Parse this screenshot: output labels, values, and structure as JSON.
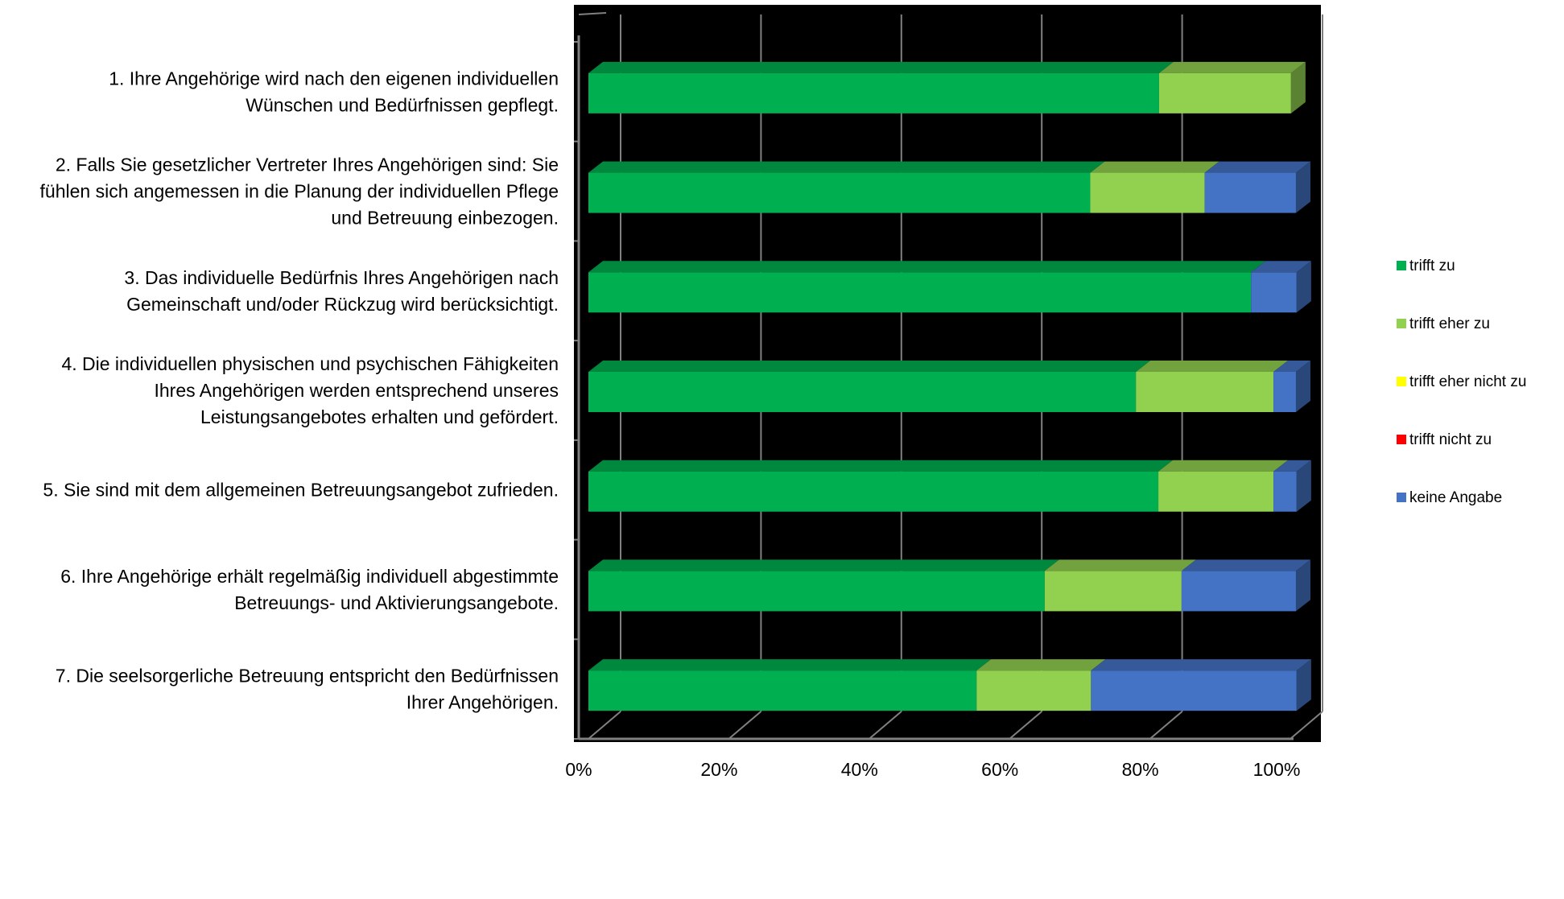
{
  "chart_data": {
    "type": "bar",
    "orientation": "horizontal",
    "stacked": true,
    "percent_stacked": true,
    "style": "3d",
    "grid": true,
    "legend_position": "right",
    "categories": [
      [
        "1. Ihre Angehörige wird nach den eigenen individuellen",
        "Wünschen und Bedürfnissen gepflegt."
      ],
      [
        "2. Falls Sie gesetzlicher Vertreter Ihres Angehörigen sind: Sie",
        "fühlen sich angemessen in die Planung der individuellen Pflege",
        "und Betreuung einbezogen."
      ],
      [
        "3. Das individuelle Bedürfnis Ihres Angehörigen nach",
        "Gemeinschaft und/oder Rückzug wird berücksichtigt."
      ],
      [
        "4. Die individuellen physischen und psychischen Fähigkeiten",
        "Ihres Angehörigen werden entsprechend unseres",
        "Leistungsangebotes erhalten und gefördert."
      ],
      [
        "5. Sie sind mit dem allgemeinen Betreuungsangebot zufrieden."
      ],
      [
        "6. Ihre Angehörige erhält regelmäßig individuell abgestimmte",
        "Betreuungs- und Aktivierungsangebote."
      ],
      [
        "7. Die seelsorgerliche Betreuung entspricht den Bedürfnissen",
        "Ihrer Angehörigen."
      ]
    ],
    "series": [
      {
        "name": "trifft zu",
        "color": "#00B050",
        "values": [
          81.3,
          71.5,
          94.4,
          78,
          81.2,
          65,
          55.3
        ]
      },
      {
        "name": "trifft eher zu",
        "color": "#92D050",
        "values": [
          18.8,
          16.3,
          0,
          19.6,
          16.4,
          19.5,
          16.3
        ]
      },
      {
        "name": "trifft eher nicht zu",
        "color": "#FFFF00",
        "values": [
          0,
          0,
          0,
          0,
          0,
          0,
          0
        ]
      },
      {
        "name": "trifft nicht zu",
        "color": "#FF0000",
        "values": [
          0,
          0,
          0,
          0,
          0,
          0,
          0
        ]
      },
      {
        "name": "keine Angabe",
        "color": "#4472C4",
        "values": [
          0,
          13,
          6.5,
          3.2,
          3.3,
          16.3,
          29.3
        ]
      }
    ],
    "xlim": [
      0,
      100
    ],
    "xticks": [
      0,
      20,
      40,
      60,
      80,
      100
    ],
    "xtick_labels": [
      "0%",
      "20%",
      "40%",
      "60%",
      "80%",
      "100%"
    ],
    "plot_background": "#000000",
    "gridline_color": "#808080"
  }
}
